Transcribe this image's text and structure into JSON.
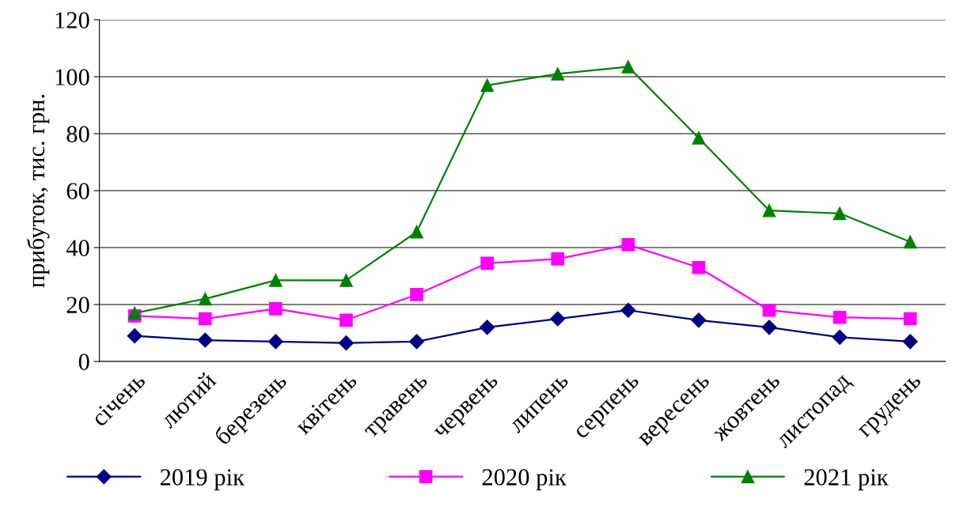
{
  "chart_data": {
    "type": "line",
    "ylabel": "прибуток, тис. грн.",
    "categories": [
      "січень",
      "лютий",
      "березень",
      "квітень",
      "травень",
      "червень",
      "липень",
      "серпень",
      "вересень",
      "жовтень",
      "листопад",
      "грудень"
    ],
    "series": [
      {
        "name": "2019 рік",
        "color": "#000080",
        "marker": "diamond",
        "values": [
          9,
          7.5,
          7,
          6.5,
          7,
          12,
          15,
          18,
          14.5,
          12,
          8.5,
          7
        ]
      },
      {
        "name": "2020 рік",
        "color": "#ff00ff",
        "marker": "square",
        "values": [
          16,
          15,
          18.5,
          14.5,
          23.5,
          34.5,
          36,
          41,
          33,
          18,
          15.5,
          15
        ]
      },
      {
        "name": "2021 рік",
        "color": "#008000",
        "marker": "triangle",
        "values": [
          17,
          22,
          28.5,
          28.5,
          45.5,
          97,
          101,
          103.5,
          78.5,
          53,
          52,
          42
        ]
      }
    ],
    "ylim": [
      0,
      120
    ],
    "yticks": [
      0,
      20,
      40,
      60,
      80,
      100,
      120
    ],
    "grid": "y",
    "legend": "bottom",
    "line_style": "solid"
  }
}
